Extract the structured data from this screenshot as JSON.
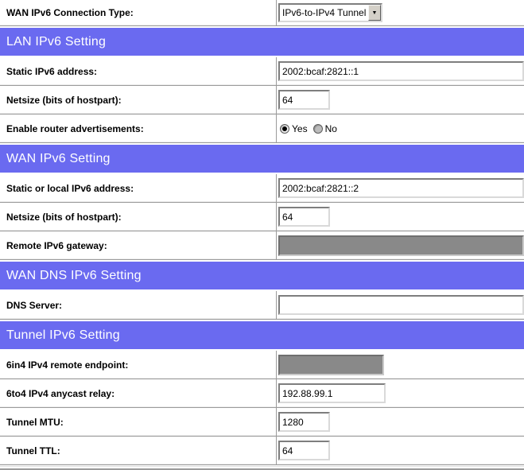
{
  "colors": {
    "header_bg": "#6a6af0",
    "header_text": "#ffffff",
    "disabled_fill": "#898989"
  },
  "icons": {
    "dropdown_arrow": "▼"
  },
  "form": {
    "rows": [
      {
        "type": "field",
        "label": "WAN IPv6 Connection Type:",
        "control": {
          "kind": "select",
          "value": "IPv6-to-IPv4 Tunnel"
        }
      },
      {
        "type": "header",
        "label": "LAN IPv6 Setting"
      },
      {
        "type": "field",
        "label": "Static IPv6 address:",
        "control": {
          "kind": "text-wide",
          "value": "2002:bcaf:2821::1"
        }
      },
      {
        "type": "field",
        "label": "Netsize (bits of hostpart):",
        "control": {
          "kind": "text-small",
          "value": "64"
        }
      },
      {
        "type": "field",
        "label": "Enable router advertisements:",
        "control": {
          "kind": "radio",
          "options": [
            {
              "label": "Yes",
              "selected": true
            },
            {
              "label": "No",
              "selected": false
            }
          ]
        }
      },
      {
        "type": "header",
        "label": "WAN IPv6 Setting"
      },
      {
        "type": "field",
        "label": "Static or local IPv6 address:",
        "control": {
          "kind": "text-wide",
          "value": "2002:bcaf:2821::2"
        }
      },
      {
        "type": "field",
        "label": "Netsize (bits of hostpart):",
        "control": {
          "kind": "text-small",
          "value": "64"
        }
      },
      {
        "type": "field",
        "label": "Remote IPv6 gateway:",
        "control": {
          "kind": "disabled-wide",
          "value": ""
        }
      },
      {
        "type": "header",
        "label": "WAN DNS IPv6 Setting"
      },
      {
        "type": "field",
        "label": "DNS Server:",
        "control": {
          "kind": "text-wide",
          "value": ""
        }
      },
      {
        "type": "header",
        "label": "Tunnel IPv6 Setting"
      },
      {
        "type": "field",
        "label": "6in4 IPv4 remote endpoint:",
        "control": {
          "kind": "disabled-medium",
          "value": ""
        }
      },
      {
        "type": "field",
        "label": "6to4 IPv4 anycast relay:",
        "control": {
          "kind": "text-medium",
          "value": "192.88.99.1"
        }
      },
      {
        "type": "field",
        "label": "Tunnel MTU:",
        "control": {
          "kind": "text-small",
          "value": "1280"
        }
      },
      {
        "type": "field",
        "label": "Tunnel TTL:",
        "control": {
          "kind": "text-small",
          "value": "64"
        }
      }
    ]
  }
}
